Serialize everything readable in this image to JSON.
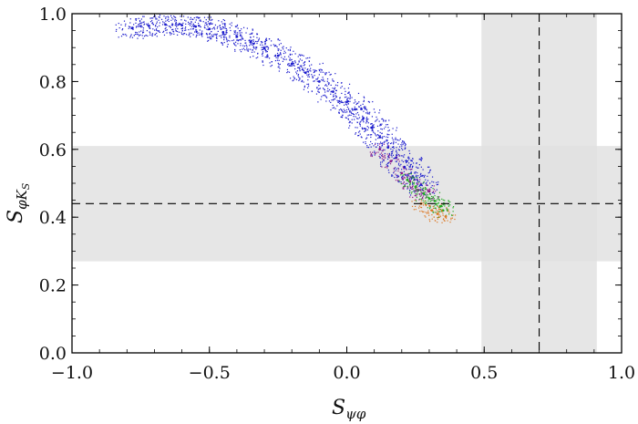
{
  "chart_data": {
    "type": "scatter",
    "title": "",
    "xlabel": {
      "main": "S",
      "sub": "ψφ"
    },
    "ylabel": {
      "main": "S",
      "sub": "φK",
      "subsub": "S"
    },
    "xlim": [
      -1.0,
      1.0
    ],
    "ylim": [
      0.0,
      1.0
    ],
    "x_ticks": [
      -1.0,
      -0.5,
      0.0,
      0.5,
      1.0
    ],
    "x_tick_labels": [
      "−1.0",
      "−0.5",
      "0.0",
      "0.5",
      "1.0"
    ],
    "y_ticks": [
      0.0,
      0.2,
      0.4,
      0.6,
      0.8,
      1.0
    ],
    "y_tick_labels": [
      "0.0",
      "0.2",
      "0.4",
      "0.6",
      "0.8",
      "1.0"
    ],
    "grid": false,
    "legend": null,
    "bands": [
      {
        "axis": "y",
        "range": [
          0.27,
          0.61
        ],
        "center": 0.44,
        "color": "#e0e0e0"
      },
      {
        "axis": "x",
        "range": [
          0.49,
          0.91
        ],
        "center": 0.7,
        "color": "#e0e0e0"
      }
    ],
    "series": [
      {
        "color": "#1a1acc",
        "points": [
          [
            -0.78,
            0.958
          ],
          [
            -0.72,
            0.964
          ],
          [
            -0.66,
            0.968
          ],
          [
            -0.6,
            0.966
          ],
          [
            -0.55,
            0.962
          ],
          [
            -0.5,
            0.955
          ],
          [
            -0.45,
            0.945
          ],
          [
            -0.4,
            0.932
          ],
          [
            -0.35,
            0.916
          ],
          [
            -0.3,
            0.898
          ],
          [
            -0.25,
            0.876
          ],
          [
            -0.2,
            0.852
          ],
          [
            -0.15,
            0.826
          ],
          [
            -0.1,
            0.8
          ],
          [
            -0.05,
            0.77
          ],
          [
            0.0,
            0.74
          ],
          [
            0.03,
            0.718
          ],
          [
            0.06,
            0.692
          ],
          [
            0.09,
            0.664
          ],
          [
            0.12,
            0.636
          ],
          [
            0.15,
            0.606
          ],
          [
            0.18,
            0.576
          ],
          [
            0.21,
            0.548
          ],
          [
            0.24,
            0.52
          ],
          [
            0.27,
            0.496
          ]
        ]
      },
      {
        "color": "#8b1a8b",
        "points": [
          [
            0.12,
            0.6
          ],
          [
            0.16,
            0.565
          ],
          [
            0.2,
            0.53
          ],
          [
            0.23,
            0.505
          ],
          [
            0.26,
            0.48
          ],
          [
            0.28,
            0.47
          ],
          [
            0.3,
            0.476
          ]
        ]
      },
      {
        "color": "#22aa22",
        "points": [
          [
            0.22,
            0.51
          ],
          [
            0.25,
            0.49
          ],
          [
            0.28,
            0.47
          ],
          [
            0.3,
            0.455
          ],
          [
            0.32,
            0.448
          ],
          [
            0.34,
            0.432
          ],
          [
            0.35,
            0.42
          ]
        ]
      },
      {
        "color": "#dd7722",
        "points": [
          [
            0.27,
            0.44
          ],
          [
            0.31,
            0.42
          ],
          [
            0.33,
            0.41
          ],
          [
            0.36,
            0.402
          ]
        ]
      }
    ]
  }
}
